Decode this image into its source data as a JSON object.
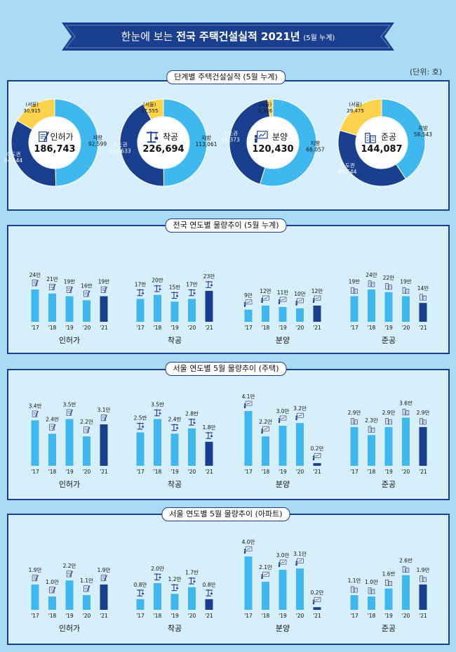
{
  "header": {
    "title_main": "한눈에 보는",
    "title_bold": "전국 주택건설실적 2021년",
    "title_note": "(5월 누계)"
  },
  "unit_label": "(단위: 호)",
  "colors": {
    "dark": "#1b3f8f",
    "light": "#3eb8ef",
    "seoul": "#fcd34d",
    "banner": "#1b3f8f"
  },
  "sections": {
    "donuts": {
      "title": "단계별 주택건설실적 (5월 누계)"
    },
    "national": {
      "title": "전국 연도별 물량추이 (5월 누계)"
    },
    "seoul_housing": {
      "title": "서울 연도별 5월  물량추이 (주택)"
    },
    "seoul_apt": {
      "title": "서울 연도별 5월  물량추이 (아파트)"
    }
  },
  "chart_data": [
    {
      "type": "pie",
      "title": "단계별 주택건설실적 (5월 누계)",
      "charts": [
        {
          "name": "인허가",
          "total": "186,743",
          "icon": "permit-icon",
          "slices": [
            {
              "label": "지방",
              "value": 92599,
              "display": "92,599"
            },
            {
              "label": "수도권",
              "value": 94144,
              "display": "94,144"
            },
            {
              "label": "(서울)",
              "value": 30915,
              "display": "30,915"
            }
          ]
        },
        {
          "name": "착공",
          "total": "226,694",
          "icon": "crane-icon",
          "slices": [
            {
              "label": "지방",
              "value": 113061,
              "display": "113,061"
            },
            {
              "label": "수도권",
              "value": 113633,
              "display": "113,633"
            },
            {
              "label": "(서울)",
              "value": 17555,
              "display": "17,555"
            }
          ]
        },
        {
          "name": "분양",
          "total": "120,430",
          "icon": "presentation-icon",
          "slices": [
            {
              "label": "지방",
              "value": 66057,
              "display": "66,057"
            },
            {
              "label": "수도권",
              "value": 54373,
              "display": "54,373"
            },
            {
              "label": "(서울)",
              "value": 2306,
              "display": "2,306"
            }
          ]
        },
        {
          "name": "준공",
          "total": "144,087",
          "icon": "building-icon",
          "slices": [
            {
              "label": "지방",
              "value": 58543,
              "display": "58,543"
            },
            {
              "label": "수도권",
              "value": 85544,
              "display": "85,544"
            },
            {
              "label": "(서울)",
              "value": 29475,
              "display": "29,475"
            }
          ]
        }
      ]
    },
    {
      "type": "bar",
      "title": "전국 연도별 물량추이 (5월 누계)",
      "categories": [
        "'17",
        "'18",
        "'19",
        "'20",
        "'21"
      ],
      "groups": [
        {
          "name": "인허가",
          "icon": "permit-icon",
          "values": [
            24,
            21,
            19,
            16,
            19
          ],
          "labels": [
            "24만",
            "21만",
            "19만",
            "16만",
            "19만"
          ]
        },
        {
          "name": "착공",
          "icon": "crane-icon",
          "values": [
            17,
            20,
            15,
            17,
            23
          ],
          "labels": [
            "17만",
            "20만",
            "15만",
            "17만",
            "23만"
          ]
        },
        {
          "name": "분양",
          "icon": "presentation-icon",
          "values": [
            9,
            12,
            11,
            10,
            12
          ],
          "labels": [
            "9만",
            "12만",
            "11만",
            "10만",
            "12만"
          ]
        },
        {
          "name": "준공",
          "icon": "building-icon",
          "values": [
            19,
            24,
            22,
            19,
            14
          ],
          "labels": [
            "19만",
            "24만",
            "22만",
            "19만",
            "14만"
          ]
        }
      ]
    },
    {
      "type": "bar",
      "title": "서울 연도별 5월  물량추이 (주택)",
      "categories": [
        "'17",
        "'18",
        "'19",
        "'20",
        "'21"
      ],
      "groups": [
        {
          "name": "인허가",
          "icon": "permit-icon",
          "values": [
            3.4,
            2.4,
            3.5,
            2.2,
            3.1
          ],
          "labels": [
            "3.4만",
            "2.4만",
            "3.5만",
            "2.2만",
            "3.1만"
          ]
        },
        {
          "name": "착공",
          "icon": "crane-icon",
          "values": [
            2.5,
            3.5,
            2.4,
            2.8,
            1.8
          ],
          "labels": [
            "2.5만",
            "3.5만",
            "2.4만",
            "2.8만",
            "1.8만"
          ]
        },
        {
          "name": "분양",
          "icon": "presentation-icon",
          "values": [
            4.1,
            2.2,
            3.0,
            3.2,
            0.2
          ],
          "labels": [
            "4.1만",
            "2.2만",
            "3.0만",
            "3.2만",
            "0.2만"
          ]
        },
        {
          "name": "준공",
          "icon": "building-icon",
          "values": [
            2.9,
            2.3,
            2.9,
            3.6,
            2.9
          ],
          "labels": [
            "2.9만",
            "2.3만",
            "2.9만",
            "3.6만",
            "2.9만"
          ]
        }
      ]
    },
    {
      "type": "bar",
      "title": "서울 연도별 5월  물량추이 (아파트)",
      "categories": [
        "'17",
        "'18",
        "'19",
        "'20",
        "'21"
      ],
      "groups": [
        {
          "name": "인허가",
          "icon": "permit-icon",
          "values": [
            1.9,
            1.0,
            2.2,
            1.1,
            1.9
          ],
          "labels": [
            "1.9만",
            "1.0만",
            "2.2만",
            "1.1만",
            "1.9만"
          ]
        },
        {
          "name": "착공",
          "icon": "crane-icon",
          "values": [
            0.8,
            2.0,
            1.2,
            1.7,
            0.8
          ],
          "labels": [
            "0.8만",
            "2.0만",
            "1.2만",
            "1.7만",
            "0.8만"
          ]
        },
        {
          "name": "분양",
          "icon": "presentation-icon",
          "values": [
            4.0,
            2.1,
            3.0,
            3.1,
            0.2
          ],
          "labels": [
            "4.0만",
            "2.1만",
            "3.0만",
            "3.1만",
            "0.2만"
          ]
        },
        {
          "name": "준공",
          "icon": "building-icon",
          "values": [
            1.1,
            1.0,
            1.6,
            2.6,
            1.9
          ],
          "labels": [
            "1.1만",
            "1.0만",
            "1.6만",
            "2.6만",
            "1.9만"
          ]
        }
      ]
    }
  ]
}
